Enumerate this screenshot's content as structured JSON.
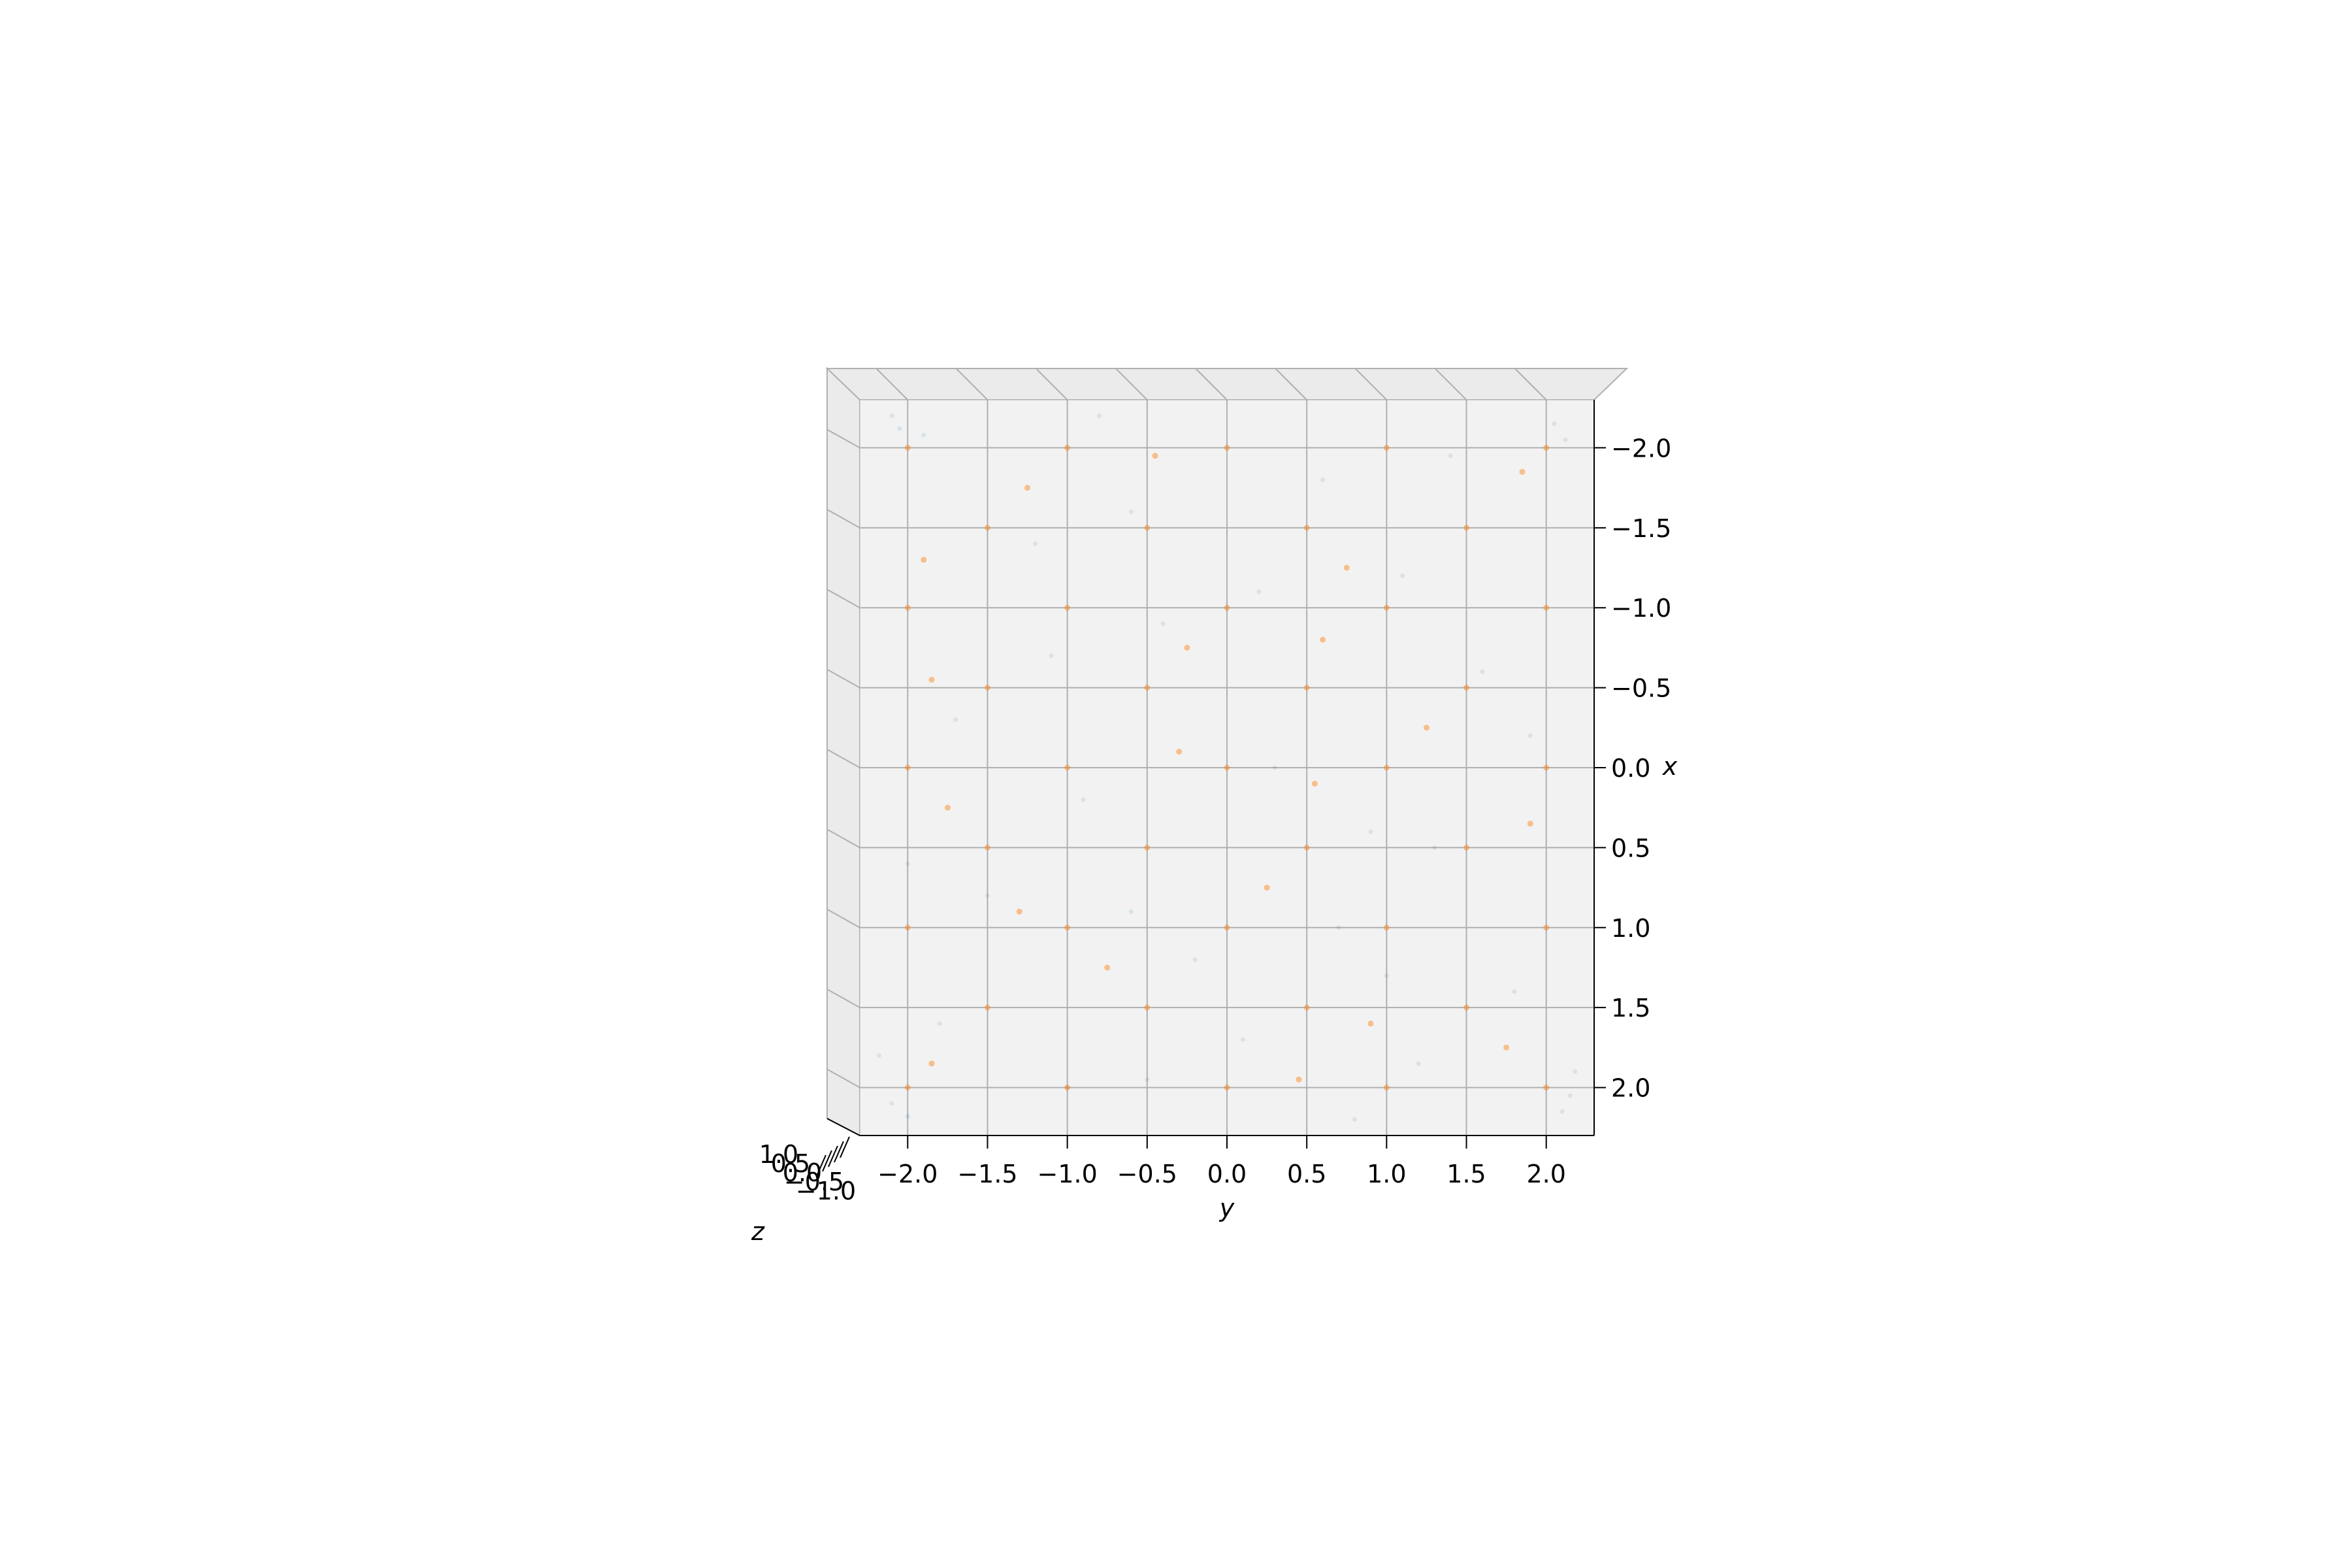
{
  "chart_data": {
    "type": "scatter",
    "view": "top-down",
    "title": "",
    "axes": {
      "y": {
        "label": "y",
        "lim": [
          -2.3,
          2.3
        ],
        "ticks": [
          -2.0,
          -1.5,
          -1.0,
          -0.5,
          0.0,
          0.5,
          1.0,
          1.5,
          2.0
        ],
        "tick_labels": [
          "−2.0",
          "−1.5",
          "−1.0",
          "−0.5",
          "0.0",
          "0.5",
          "1.0",
          "1.5",
          "2.0"
        ]
      },
      "x": {
        "label": "x",
        "lim": [
          -2.3,
          2.3
        ],
        "inverted": true,
        "ticks": [
          -2.0,
          -1.5,
          -1.0,
          -0.5,
          0.0,
          0.5,
          1.0,
          1.5,
          2.0
        ],
        "tick_labels": [
          "−2.0",
          "−1.5",
          "−1.0",
          "−0.5",
          "0.0",
          "0.5",
          "1.0",
          "1.5",
          "2.0"
        ]
      },
      "z": {
        "label": "z",
        "tick_labels": [
          "−1.0",
          "−0.5",
          "0.0",
          "0.5",
          "1.0"
        ]
      }
    },
    "grid": true,
    "series": [
      {
        "color": "#1f77b4",
        "opacity": 0.12,
        "marker_radius": 3.5,
        "points": [
          {
            "x": -2.12,
            "y": -2.05
          },
          {
            "x": -2.08,
            "y": -1.9
          },
          {
            "x": -2.2,
            "y": -2.1
          },
          {
            "x": -2.15,
            "y": 2.05
          },
          {
            "x": -2.05,
            "y": 2.12
          },
          {
            "x": 2.1,
            "y": -2.1
          },
          {
            "x": 2.18,
            "y": -2.0
          },
          {
            "x": 2.15,
            "y": 2.1
          },
          {
            "x": 2.05,
            "y": 2.15
          },
          {
            "x": 1.9,
            "y": 2.18
          },
          {
            "x": 1.8,
            "y": -2.18
          },
          {
            "x": 2.0,
            "y": -1.0
          },
          {
            "x": -1.8,
            "y": 0.6
          },
          {
            "x": -1.4,
            "y": -1.2
          },
          {
            "x": -1.2,
            "y": 1.1
          },
          {
            "x": -0.9,
            "y": -0.4
          },
          {
            "x": -0.6,
            "y": 1.6
          },
          {
            "x": -0.3,
            "y": -1.7
          },
          {
            "x": 0.0,
            "y": 0.3
          },
          {
            "x": 0.2,
            "y": -0.9
          },
          {
            "x": 0.5,
            "y": 1.3
          },
          {
            "x": 0.8,
            "y": -1.5
          },
          {
            "x": 1.0,
            "y": 0.7
          },
          {
            "x": 1.2,
            "y": -0.2
          },
          {
            "x": 1.4,
            "y": 1.8
          },
          {
            "x": 1.6,
            "y": -1.8
          },
          {
            "x": 1.7,
            "y": 0.1
          },
          {
            "x": 1.85,
            "y": 1.2
          },
          {
            "x": -1.6,
            "y": -0.6
          },
          {
            "x": -1.1,
            "y": 0.2
          },
          {
            "x": -0.7,
            "y": -1.1
          },
          {
            "x": 0.4,
            "y": 0.9
          },
          {
            "x": 0.9,
            "y": -0.6
          },
          {
            "x": 1.3,
            "y": 1.0
          },
          {
            "x": -0.2,
            "y": 1.9
          },
          {
            "x": 0.6,
            "y": -2.0
          },
          {
            "x": 1.95,
            "y": -0.5
          },
          {
            "x": -1.95,
            "y": 1.4
          },
          {
            "x": 2.2,
            "y": 0.8
          },
          {
            "x": -2.2,
            "y": -0.8
          }
        ]
      },
      {
        "color": "#ff7f0e",
        "opacity": 0.45,
        "marker_radius": 4.5,
        "points": [
          {
            "x": -2.0,
            "y": -2.0
          },
          {
            "x": -2.0,
            "y": -1.0
          },
          {
            "x": -2.0,
            "y": 0.0
          },
          {
            "x": -2.0,
            "y": 1.0
          },
          {
            "x": -2.0,
            "y": 2.0
          },
          {
            "x": -1.5,
            "y": -1.5
          },
          {
            "x": -1.5,
            "y": -0.5
          },
          {
            "x": -1.5,
            "y": 0.5
          },
          {
            "x": -1.5,
            "y": 1.5
          },
          {
            "x": -1.0,
            "y": -2.0
          },
          {
            "x": -1.0,
            "y": -1.0
          },
          {
            "x": -1.0,
            "y": 0.0
          },
          {
            "x": -1.0,
            "y": 1.0
          },
          {
            "x": -1.0,
            "y": 2.0
          },
          {
            "x": -0.5,
            "y": -1.5
          },
          {
            "x": -0.5,
            "y": -0.5
          },
          {
            "x": -0.5,
            "y": 0.5
          },
          {
            "x": -0.5,
            "y": 1.5
          },
          {
            "x": 0.0,
            "y": -2.0
          },
          {
            "x": 0.0,
            "y": -1.0
          },
          {
            "x": 0.0,
            "y": 0.0
          },
          {
            "x": 0.0,
            "y": 1.0
          },
          {
            "x": 0.0,
            "y": 2.0
          },
          {
            "x": 0.5,
            "y": -1.5
          },
          {
            "x": 0.5,
            "y": -0.5
          },
          {
            "x": 0.5,
            "y": 0.5
          },
          {
            "x": 0.5,
            "y": 1.5
          },
          {
            "x": 1.0,
            "y": -2.0
          },
          {
            "x": 1.0,
            "y": -1.0
          },
          {
            "x": 1.0,
            "y": 0.0
          },
          {
            "x": 1.0,
            "y": 1.0
          },
          {
            "x": 1.0,
            "y": 2.0
          },
          {
            "x": 1.5,
            "y": -1.5
          },
          {
            "x": 1.5,
            "y": -0.5
          },
          {
            "x": 1.5,
            "y": 0.5
          },
          {
            "x": 1.5,
            "y": 1.5
          },
          {
            "x": 2.0,
            "y": -2.0
          },
          {
            "x": 2.0,
            "y": -1.0
          },
          {
            "x": 2.0,
            "y": 0.0
          },
          {
            "x": 2.0,
            "y": 1.0
          },
          {
            "x": 2.0,
            "y": 2.0
          },
          {
            "x": -1.75,
            "y": -1.25
          },
          {
            "x": -1.25,
            "y": 0.75
          },
          {
            "x": -0.75,
            "y": -0.25
          },
          {
            "x": -0.25,
            "y": 1.25
          },
          {
            "x": 0.25,
            "y": -1.75
          },
          {
            "x": 0.75,
            "y": 0.25
          },
          {
            "x": 1.25,
            "y": -0.75
          },
          {
            "x": 1.75,
            "y": 1.75
          },
          {
            "x": -1.85,
            "y": 1.85
          },
          {
            "x": 1.85,
            "y": -1.85
          },
          {
            "x": -0.1,
            "y": -0.3
          },
          {
            "x": 0.35,
            "y": 1.9
          },
          {
            "x": -1.3,
            "y": -1.9
          },
          {
            "x": 1.6,
            "y": 0.9
          },
          {
            "x": -0.8,
            "y": 0.6
          },
          {
            "x": 0.9,
            "y": -1.3
          },
          {
            "x": -1.95,
            "y": -0.45
          },
          {
            "x": 1.95,
            "y": 0.45
          },
          {
            "x": 0.1,
            "y": 0.55
          },
          {
            "x": -0.55,
            "y": -1.85
          }
        ]
      }
    ]
  }
}
